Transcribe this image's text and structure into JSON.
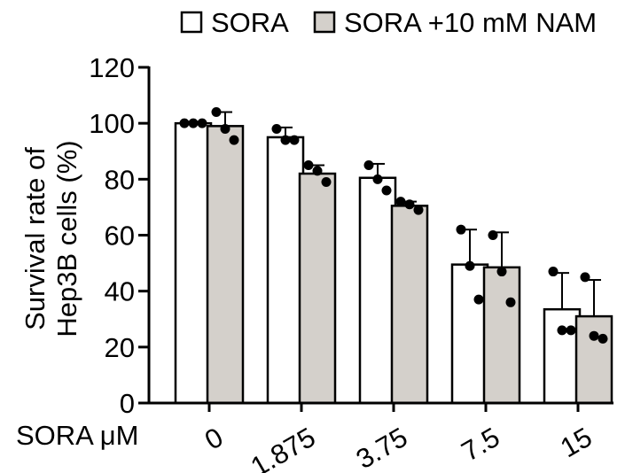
{
  "chart_data": {
    "type": "bar",
    "categories": [
      "0",
      "1.875",
      "3.75",
      "7.5",
      "15"
    ],
    "x_prefix": "SORA μM",
    "ylabel_lines": [
      "Survival rate of",
      "Hep3B cells (%)"
    ],
    "ylim": [
      0,
      120
    ],
    "yticks": [
      "0",
      "20",
      "40",
      "60",
      "80",
      "100",
      "120"
    ],
    "legend_position": "top",
    "series": [
      {
        "name": "SORA",
        "color": "#ffffff",
        "values": [
          100,
          95,
          80.5,
          49.5,
          33.5
        ],
        "error": [
          0.5,
          3.5,
          5,
          12.5,
          13
        ],
        "points": [
          [
            100,
            100,
            100
          ],
          [
            98,
            94,
            94
          ],
          [
            85,
            80,
            76
          ],
          [
            62,
            49,
            37
          ],
          [
            47,
            26,
            26
          ]
        ]
      },
      {
        "name": "SORA +10 mM NAM",
        "color": "#d4d0cb",
        "values": [
          99,
          82,
          70.5,
          48.5,
          31
        ],
        "error": [
          5,
          3,
          1.5,
          12.5,
          13
        ],
        "points": [
          [
            104,
            98,
            94
          ],
          [
            85,
            83,
            79
          ],
          [
            72,
            71,
            69
          ],
          [
            60,
            47,
            36
          ],
          [
            45,
            24,
            23
          ]
        ]
      }
    ]
  }
}
